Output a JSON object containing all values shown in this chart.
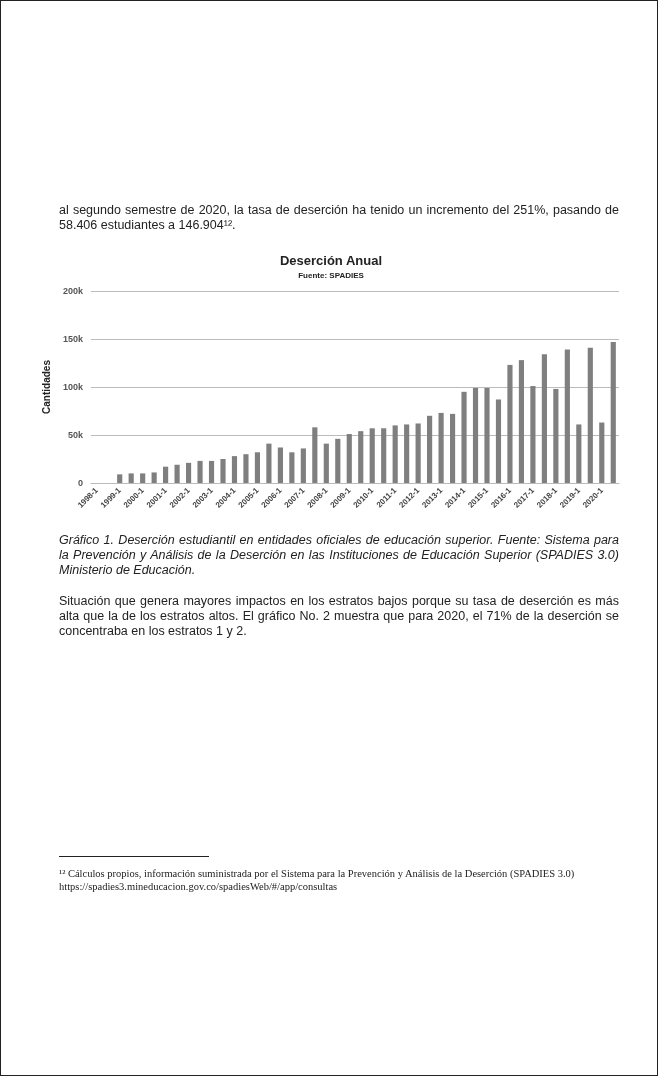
{
  "chart_data": {
    "type": "bar",
    "title": "Deserción Anual",
    "subtitle": "Fuente: SPADIES",
    "ylabel": "Cantidades",
    "categories": [
      "1998-1",
      null,
      "1999-1",
      null,
      "2000-1",
      null,
      "2001-1",
      null,
      "2002-1",
      null,
      "2003-1",
      null,
      "2004-1",
      null,
      "2005-1",
      null,
      "2006-1",
      null,
      "2007-1",
      null,
      "2008-1",
      null,
      "2009-1",
      null,
      "2010-1",
      null,
      "2011-1",
      null,
      "2012-1",
      null,
      "2013-1",
      null,
      "2014-1",
      null,
      "2015-1",
      null,
      "2016-1",
      null,
      "2017-1",
      null,
      "2018-1",
      null,
      "2019-1",
      null,
      "2020-1",
      null
    ],
    "values": [
      null,
      null,
      9000,
      10000,
      10000,
      11000,
      17000,
      19000,
      21000,
      23000,
      23000,
      25000,
      28000,
      30000,
      32000,
      41000,
      37000,
      32000,
      36000,
      58000,
      41000,
      46000,
      51000,
      54000,
      57000,
      57000,
      60000,
      61000,
      62000,
      70000,
      73000,
      72000,
      95000,
      99000,
      99000,
      87000,
      123000,
      128000,
      101000,
      134000,
      98000,
      139000,
      61000,
      141000,
      63000,
      147000
    ],
    "color": "#7f7f7f",
    "ylim": [
      0,
      200000
    ],
    "yticks": [
      0,
      {
        "value": 50000,
        "label": "50k"
      },
      {
        "value": 100000,
        "label": "100k"
      },
      {
        "value": 150000,
        "label": "150k"
      },
      {
        "value": 200000,
        "label": "200k"
      }
    ],
    "grid": "y",
    "annotations": [
      "al segundo semestre de 2020, la tasa de deserción ha tenido un incremento del 251%, pasando de 58.406 estudiantes a 146.904¹².",
      "Gráfico 1. Deserción estudiantil en entidades oficiales de educación superior. Fuente: Sistema para la Prevención y Análisis de la Deserción en las Instituciones de Educación Superior (SPADIES 3.0) Ministerio de Educación.",
      "Situación que genera mayores impactos en los estratos bajos porque su tasa de deserción es más alta que la de los estratos altos. El gráfico No. 2 muestra que para 2020, el 71% de la deserción se concentraba en los estratos 1 y 2.",
      "¹² Cálculos propios, información suministrada por el Sistema para la Prevención y Análisis de la Deserción (SPADIES 3.0) https://spadies3.mineducacion.gov.co/spadiesWeb/#/app/consultas"
    ]
  }
}
